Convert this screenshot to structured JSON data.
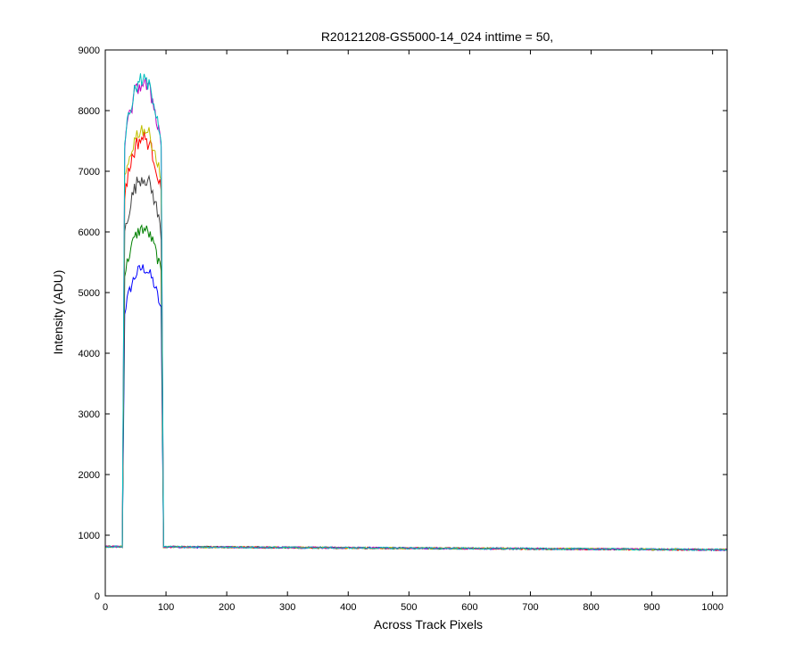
{
  "chart_data": {
    "type": "line",
    "title": "R20121208-GS5000-14_024 inttime = 50,",
    "xlabel": "Across Track Pixels",
    "ylabel": "Intensity (ADU)",
    "xlim": [
      0,
      1024
    ],
    "ylim": [
      0,
      9000
    ],
    "xticks": [
      0,
      100,
      200,
      300,
      400,
      500,
      600,
      700,
      800,
      900,
      1000
    ],
    "yticks": [
      0,
      1000,
      2000,
      3000,
      4000,
      5000,
      6000,
      7000,
      8000,
      9000
    ],
    "grid": false,
    "legend": "none",
    "series": [
      {
        "color": "#0000ff",
        "baseline_start": 812,
        "baseline_end": 760,
        "plateau_edge": 4600,
        "plateau_peak": 5400
      },
      {
        "color": "#008000",
        "baseline_start": 812,
        "baseline_end": 760,
        "plateau_edge": 5200,
        "plateau_peak": 6050
      },
      {
        "color": "#404040",
        "baseline_start": 812,
        "baseline_end": 760,
        "plateau_edge": 5850,
        "plateau_peak": 6900
      },
      {
        "color": "#ff0000",
        "baseline_start": 812,
        "baseline_end": 760,
        "plateau_edge": 6500,
        "plateau_peak": 7550
      },
      {
        "color": "#bfbf00",
        "baseline_start": 812,
        "baseline_end": 760,
        "plateau_edge": 6700,
        "plateau_peak": 7700
      },
      {
        "color": "#bf00bf",
        "baseline_start": 812,
        "baseline_end": 760,
        "plateau_edge": 7300,
        "plateau_peak": 8450
      },
      {
        "color": "#00bfbf",
        "baseline_start": 812,
        "baseline_end": 760,
        "plateau_edge": 7400,
        "plateau_peak": 8500
      }
    ],
    "plateau_x_range": [
      30,
      94
    ]
  }
}
